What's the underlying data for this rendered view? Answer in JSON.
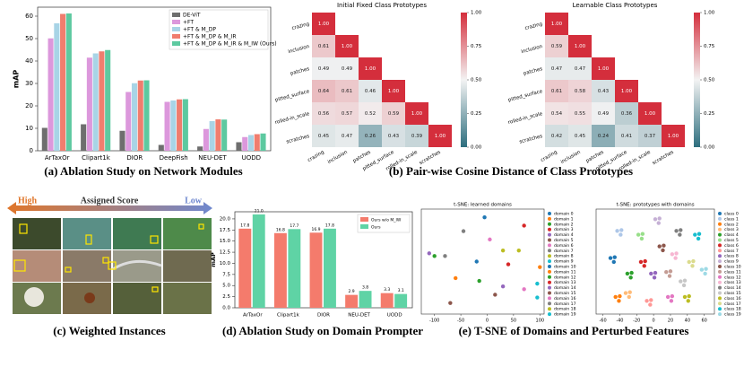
{
  "captions": [
    "(a) Ablation Study on Network Modules",
    "(b) Pair-wise Cosine Distance of Class Prototypes",
    "(c) Weighted Instances",
    "(d) Ablation Study on Domain Prompter",
    "(e) T-SNE of Domains and Perturbed Features"
  ],
  "instances": {
    "high": "High",
    "score": "Assigned Score",
    "low": "Low"
  },
  "chart_data": [
    {
      "type": "bar",
      "ylabel": "mAP",
      "categories": [
        "ArTaxOr",
        "Clipart1k",
        "DIOR",
        "DeepFish",
        "NEU-DET",
        "UODD"
      ],
      "series": [
        {
          "name": "DE-ViT",
          "color": "#6e6e6e",
          "values": [
            10.2,
            11.8,
            8.9,
            2.6,
            1.9,
            3.8
          ]
        },
        {
          "name": "+FT",
          "color": "#dc98dc",
          "values": [
            50.1,
            41.5,
            26.2,
            21.8,
            9.7,
            6.1
          ]
        },
        {
          "name": "+FT & M_DP",
          "color": "#a8d4e6",
          "values": [
            56.8,
            43.4,
            30.1,
            22.4,
            13.2,
            7.0
          ]
        },
        {
          "name": "+FT & M_DP & M_IR",
          "color": "#f07d6e",
          "values": [
            61.0,
            44.3,
            31.3,
            22.9,
            14.0,
            7.4
          ]
        },
        {
          "name": "+FT & M_DP & M_IR & M_IW (Ours)",
          "color": "#5dc9a0",
          "values": [
            61.2,
            44.9,
            31.4,
            23.0,
            13.9,
            7.7
          ]
        }
      ],
      "ylim": [
        0,
        64
      ],
      "yticks": [
        0,
        10,
        20,
        30,
        40,
        50,
        60
      ],
      "legend": "upper right"
    },
    {
      "type": "heatmap",
      "title": "Initial Fixed Class Prototypes",
      "labels": [
        "crazing",
        "inclusion",
        "patches",
        "pitted_surface",
        "rolled-in_scale",
        "scratches"
      ],
      "values": [
        [
          1.0
        ],
        [
          0.61,
          1.0
        ],
        [
          0.49,
          0.49,
          1.0
        ],
        [
          0.64,
          0.61,
          0.46,
          1.0
        ],
        [
          0.56,
          0.57,
          0.52,
          0.59,
          1.0
        ],
        [
          0.45,
          0.47,
          0.26,
          0.43,
          0.39,
          1.0
        ]
      ],
      "value_labels": [
        [
          "1.00"
        ],
        [
          "0.61",
          "1.00"
        ],
        [
          "0.49",
          "0.49",
          "1.00"
        ],
        [
          "0.64",
          "0.61",
          "0.46",
          "1.00"
        ],
        [
          "0.56",
          "0.57",
          "0.52",
          "0.59",
          "1.00"
        ],
        [
          "0.45",
          "0.47",
          "0.26",
          "0.43",
          "0.39",
          "1.00"
        ]
      ],
      "clim": [
        0,
        1
      ],
      "cticks": [
        {
          "value": 0,
          "label": "0.00"
        },
        0.25,
        {
          "value": 0.5,
          "label": "0.50"
        },
        0.75,
        {
          "value": 1,
          "label": "1.00"
        }
      ],
      "colormap": [
        "#2d6e7e",
        "#f3f3f3",
        "#d42e3c"
      ]
    },
    {
      "type": "heatmap",
      "title": "Learnable Class Prototypes",
      "labels": [
        "crazing",
        "inclusion",
        "patches",
        "pitted_surface",
        "rolled-in_scale",
        "scratches"
      ],
      "values": [
        [
          1.0
        ],
        [
          0.59,
          1.0
        ],
        [
          0.47,
          0.47,
          1.0
        ],
        [
          0.61,
          0.58,
          0.43,
          1.0
        ],
        [
          0.54,
          0.55,
          0.49,
          0.36,
          1.0
        ],
        [
          0.42,
          0.45,
          0.24,
          0.41,
          0.37,
          1.0
        ]
      ],
      "value_labels": [
        [
          "1.00"
        ],
        [
          "0.59",
          "1.00"
        ],
        [
          "0.47",
          "0.47",
          "1.00"
        ],
        [
          "0.61",
          "0.58",
          "0.43",
          "1.00"
        ],
        [
          "0.54",
          "0.55",
          "0.49",
          "0.36",
          "1.00"
        ],
        [
          "0.42",
          "0.45",
          "0.24",
          "0.41",
          "0.37",
          "1.00"
        ]
      ],
      "clim": [
        0,
        1
      ],
      "cticks": [
        {
          "value": 0,
          "label": "0.00"
        },
        0.25,
        {
          "value": 0.5,
          "label": "0.50"
        },
        0.75,
        {
          "value": 1,
          "label": "1.00"
        }
      ],
      "colormap": [
        "#2d6e7e",
        "#f3f3f3",
        "#d42e3c"
      ]
    },
    {
      "type": "bar",
      "ylabel": "mAP",
      "categories": [
        "ArTaxOr",
        "Clipart1k",
        "DIOR",
        "NEU-DET",
        "UODD"
      ],
      "series": [
        {
          "name": "Ours w/o M_IW",
          "color": "#f47b6c",
          "values": [
            17.8,
            16.8,
            16.9,
            2.9,
            3.3
          ],
          "value_labels": [
            "17.8",
            "16.8",
            "16.9",
            "2.9",
            "3.3"
          ]
        },
        {
          "name": "Ours",
          "color": "#5fd3a5",
          "values": [
            21.0,
            17.7,
            17.8,
            3.8,
            3.1
          ],
          "value_labels": [
            "21.0",
            "17.7",
            "17.8",
            "3.8",
            "3.1"
          ]
        }
      ],
      "ylim": [
        0,
        21.6
      ],
      "yticks": [
        {
          "value": 0,
          "label": "0.0"
        },
        2.5,
        {
          "value": 5,
          "label": "5.0"
        },
        7.5,
        {
          "value": 10,
          "label": "10.0"
        },
        12.5,
        {
          "value": 15,
          "label": "15.0"
        },
        17.5,
        {
          "value": 20,
          "label": "20.0"
        }
      ],
      "legend": "upper right"
    },
    {
      "type": "scatter",
      "title": "t-SNE: learned domains",
      "xlim": [
        -125,
        108
      ],
      "xticks": [
        -100,
        -50,
        0,
        50,
        100
      ],
      "ylim": [
        -75,
        115
      ],
      "series": [
        {
          "name": "domain 0",
          "color": "#1f77b4",
          "x": [
            -5
          ],
          "y": [
            100
          ]
        },
        {
          "name": "domain 1",
          "color": "#ff7f0e",
          "x": [
            -60
          ],
          "y": [
            -10
          ]
        },
        {
          "name": "domain 2",
          "color": "#2ca02c",
          "x": [
            -100
          ],
          "y": [
            30
          ]
        },
        {
          "name": "domain 3",
          "color": "#d62728",
          "x": [
            70
          ],
          "y": [
            85
          ]
        },
        {
          "name": "domain 4",
          "color": "#9467bd",
          "x": [
            30
          ],
          "y": [
            -25
          ]
        },
        {
          "name": "domain 5",
          "color": "#8c564b",
          "x": [
            -70
          ],
          "y": [
            -55
          ]
        },
        {
          "name": "domain 6",
          "color": "#e377c2",
          "x": [
            5
          ],
          "y": [
            60
          ]
        },
        {
          "name": "domain 7",
          "color": "#7f7f7f",
          "x": [
            -45
          ],
          "y": [
            75
          ]
        },
        {
          "name": "domain 8",
          "color": "#bcbd22",
          "x": [
            60
          ],
          "y": [
            40
          ]
        },
        {
          "name": "domain 9",
          "color": "#17becf",
          "x": [
            95
          ],
          "y": [
            -20
          ]
        },
        {
          "name": "domain 10",
          "color": "#1f77b4",
          "x": [
            -20
          ],
          "y": [
            20
          ]
        },
        {
          "name": "domain 11",
          "color": "#ff7f0e",
          "x": [
            100
          ],
          "y": [
            10
          ]
        },
        {
          "name": "domain 12",
          "color": "#2ca02c",
          "x": [
            -15
          ],
          "y": [
            -15
          ]
        },
        {
          "name": "domain 13",
          "color": "#d62728",
          "x": [
            40
          ],
          "y": [
            15
          ]
        },
        {
          "name": "domain 14",
          "color": "#9467bd",
          "x": [
            -110
          ],
          "y": [
            35
          ]
        },
        {
          "name": "domain 15",
          "color": "#8c564b",
          "x": [
            15
          ],
          "y": [
            -40
          ]
        },
        {
          "name": "domain 16",
          "color": "#e377c2",
          "x": [
            70
          ],
          "y": [
            -30
          ]
        },
        {
          "name": "domain 17",
          "color": "#7f7f7f",
          "x": [
            -80
          ],
          "y": [
            30
          ]
        },
        {
          "name": "domain 18",
          "color": "#bcbd22",
          "x": [
            30
          ],
          "y": [
            40
          ]
        },
        {
          "name": "domain 19",
          "color": "#17becf",
          "x": [
            95
          ],
          "y": [
            -45
          ]
        }
      ]
    },
    {
      "type": "scatter",
      "title": "t-SNE: prototypes with domains",
      "xlim": [
        -68,
        72
      ],
      "xticks": [
        -60,
        -40,
        -20,
        0,
        20,
        40,
        60
      ],
      "ylim": [
        -60,
        75
      ],
      "series": [
        {
          "name": "class 0",
          "color": "#1f77b4",
          "x": [
            -51,
            -46,
            -47
          ],
          "y": [
            12,
            13,
            7
          ]
        },
        {
          "name": "class 1",
          "color": "#aec7e8",
          "x": [
            -43,
            -38,
            -39
          ],
          "y": [
            47,
            48,
            42
          ]
        },
        {
          "name": "class 2",
          "color": "#ff7f0e",
          "x": [
            -45,
            -40,
            -41
          ],
          "y": [
            -38,
            -37,
            -43
          ]
        },
        {
          "name": "class 3",
          "color": "#ffbb78",
          "x": [
            -33,
            -28,
            -29
          ],
          "y": [
            -33,
            -32,
            -38
          ]
        },
        {
          "name": "class 4",
          "color": "#2ca02c",
          "x": [
            -31,
            -26,
            -27
          ],
          "y": [
            -8,
            -7,
            -13
          ]
        },
        {
          "name": "class 5",
          "color": "#98df8a",
          "x": [
            -18,
            -13,
            -14
          ],
          "y": [
            42,
            43,
            37
          ]
        },
        {
          "name": "class 6",
          "color": "#d62728",
          "x": [
            -15,
            -10,
            -11
          ],
          "y": [
            7,
            8,
            2
          ]
        },
        {
          "name": "class 7",
          "color": "#ff9896",
          "x": [
            -8,
            -3,
            -4
          ],
          "y": [
            -43,
            -42,
            -48
          ]
        },
        {
          "name": "class 8",
          "color": "#9467bd",
          "x": [
            -3,
            2,
            1
          ],
          "y": [
            -8,
            -7,
            -13
          ]
        },
        {
          "name": "class 9",
          "color": "#c5b0d5",
          "x": [
            2,
            7,
            6
          ],
          "y": [
            62,
            63,
            57
          ]
        },
        {
          "name": "class 10",
          "color": "#8c564b",
          "x": [
            7,
            12,
            11
          ],
          "y": [
            27,
            28,
            22
          ]
        },
        {
          "name": "class 11",
          "color": "#c49c94",
          "x": [
            15,
            20,
            19
          ],
          "y": [
            -6,
            -5,
            -11
          ]
        },
        {
          "name": "class 12",
          "color": "#e377c2",
          "x": [
            17,
            22,
            21
          ],
          "y": [
            -38,
            -37,
            -43
          ]
        },
        {
          "name": "class 13",
          "color": "#f7b6d2",
          "x": [
            22,
            27,
            26
          ],
          "y": [
            17,
            18,
            12
          ]
        },
        {
          "name": "class 14",
          "color": "#7f7f7f",
          "x": [
            27,
            32,
            31
          ],
          "y": [
            47,
            48,
            42
          ]
        },
        {
          "name": "class 15",
          "color": "#c7c7c7",
          "x": [
            32,
            37,
            36
          ],
          "y": [
            -18,
            -17,
            -23
          ]
        },
        {
          "name": "class 16",
          "color": "#bcbd22",
          "x": [
            37,
            42,
            41
          ],
          "y": [
            -38,
            -37,
            -43
          ]
        },
        {
          "name": "class 17",
          "color": "#dbdb8d",
          "x": [
            42,
            47,
            46
          ],
          "y": [
            7,
            8,
            2
          ]
        },
        {
          "name": "class 18",
          "color": "#17becf",
          "x": [
            49,
            54,
            53
          ],
          "y": [
            42,
            43,
            37
          ]
        },
        {
          "name": "class 19",
          "color": "#9edae5",
          "x": [
            57,
            62,
            61
          ],
          "y": [
            -3,
            -2,
            -8
          ]
        }
      ]
    }
  ]
}
